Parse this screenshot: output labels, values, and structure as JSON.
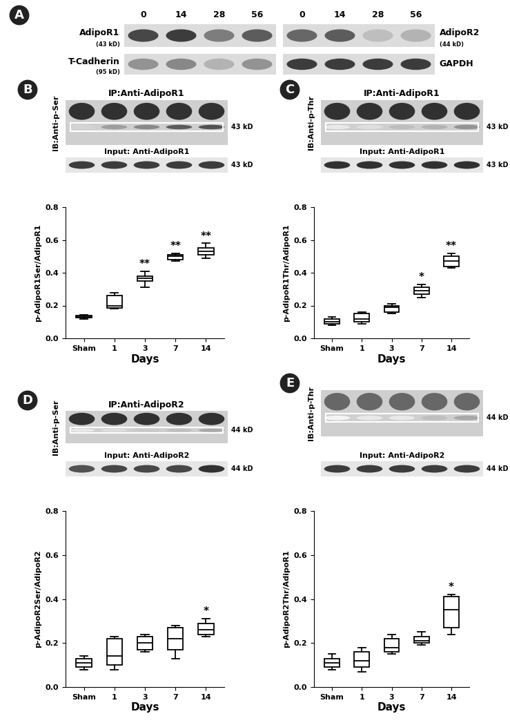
{
  "panel_a": {
    "panel_label": "A",
    "lanes": [
      "0",
      "14",
      "28",
      "56"
    ],
    "blots": [
      {
        "name": "AdipoR1",
        "size": "(43 kD)",
        "band_intensity": [
          0.85,
          0.9,
          0.6,
          0.75
        ]
      },
      {
        "name": "T-Cadherin",
        "size": "(95 kD)",
        "band_intensity": [
          0.5,
          0.55,
          0.35,
          0.5
        ]
      },
      {
        "name": "AdipoR2",
        "size": "(44 kD)",
        "band_intensity": [
          0.7,
          0.75,
          0.3,
          0.35
        ]
      },
      {
        "name": "GAPDH",
        "size": null,
        "band_intensity": [
          0.9,
          0.9,
          0.9,
          0.9
        ]
      }
    ]
  },
  "chart_data": [
    {
      "type": "box",
      "panel_label": "B",
      "ip_title": "IP:Anti-AdipoR1",
      "ib_label": "IB:Anti-p-Ser",
      "size_label": "43 kD",
      "input_title": "Input: Anti-AdipoR1",
      "heavy_band_intensity": [
        0.95,
        0.95,
        0.95,
        0.95,
        0.95
      ],
      "target_band_intensity": [
        0.2,
        0.45,
        0.55,
        0.75,
        0.8
      ],
      "input_band_intensity": [
        0.9,
        0.9,
        0.9,
        0.9,
        0.9
      ],
      "categories": [
        "Sham",
        "1",
        "3",
        "7",
        "14"
      ],
      "stats": [
        {
          "min": 0.12,
          "q1": 0.125,
          "median": 0.13,
          "q3": 0.14,
          "max": 0.145
        },
        {
          "min": 0.18,
          "q1": 0.185,
          "median": 0.2,
          "q3": 0.26,
          "max": 0.28
        },
        {
          "min": 0.31,
          "q1": 0.35,
          "median": 0.365,
          "q3": 0.38,
          "max": 0.41
        },
        {
          "min": 0.47,
          "q1": 0.48,
          "median": 0.5,
          "q3": 0.51,
          "max": 0.52
        },
        {
          "min": 0.49,
          "q1": 0.51,
          "median": 0.53,
          "q3": 0.55,
          "max": 0.58
        }
      ],
      "significance": [
        null,
        null,
        "**",
        "**",
        "**"
      ],
      "x_label": "Days",
      "y_label": "p-AdipoR1Ser/AdipoR1",
      "color": "#000000",
      "ylim": [
        0,
        0.8
      ],
      "yticks": [
        {
          "value": 0,
          "label": "0.0"
        },
        {
          "value": 0.2,
          "label": "0.2"
        },
        {
          "value": 0.4,
          "label": "0.4"
        },
        {
          "value": 0.6,
          "label": "0.6"
        },
        {
          "value": 0.8,
          "label": "0.8"
        }
      ],
      "grid": false
    },
    {
      "type": "box",
      "panel_label": "C",
      "ip_title": "IP:Anti-AdipoR1",
      "ib_label": "IB:Anti-p-Thr",
      "size_label": "43 kD",
      "input_title": "Input: Anti-AdipoR1",
      "heavy_band_intensity": [
        0.95,
        0.95,
        0.95,
        0.95,
        0.95
      ],
      "target_band_intensity": [
        0.1,
        0.15,
        0.3,
        0.35,
        0.5
      ],
      "input_band_intensity": [
        0.95,
        0.95,
        0.95,
        0.95,
        0.95
      ],
      "categories": [
        "Sham",
        "1",
        "3",
        "7",
        "14"
      ],
      "stats": [
        {
          "min": 0.08,
          "q1": 0.09,
          "median": 0.1,
          "q3": 0.12,
          "max": 0.13
        },
        {
          "min": 0.09,
          "q1": 0.1,
          "median": 0.12,
          "q3": 0.15,
          "max": 0.16
        },
        {
          "min": 0.15,
          "q1": 0.16,
          "median": 0.19,
          "q3": 0.2,
          "max": 0.21
        },
        {
          "min": 0.25,
          "q1": 0.27,
          "median": 0.29,
          "q3": 0.31,
          "max": 0.33
        },
        {
          "min": 0.43,
          "q1": 0.44,
          "median": 0.47,
          "q3": 0.5,
          "max": 0.52
        }
      ],
      "significance": [
        null,
        null,
        null,
        "*",
        "**"
      ],
      "x_label": "Days",
      "y_label": "p-AdipoR1Thr/AdipoR1",
      "color": "#000000",
      "ylim": [
        0,
        0.8
      ],
      "yticks": [
        {
          "value": 0,
          "label": "0.0"
        },
        {
          "value": 0.2,
          "label": "0.2"
        },
        {
          "value": 0.4,
          "label": "0.4"
        },
        {
          "value": 0.6,
          "label": "0.6"
        },
        {
          "value": 0.8,
          "label": "0.8"
        }
      ],
      "grid": false
    },
    {
      "type": "box",
      "panel_label": "D",
      "ip_title": "IP:Anti-AdipoR2",
      "ib_label": "IB:Anti-p-Ser",
      "size_label": "44 kD",
      "input_title": "Input: Anti-AdipoR2",
      "heavy_band_intensity": [
        0.95,
        0.95,
        0.95,
        0.95,
        0.95
      ],
      "target_band_intensity": [
        0.1,
        0.15,
        0.25,
        0.3,
        0.4
      ],
      "input_band_intensity": [
        0.8,
        0.85,
        0.85,
        0.85,
        0.95
      ],
      "categories": [
        "Sham",
        "1",
        "3",
        "7",
        "14"
      ],
      "stats": [
        {
          "min": 0.08,
          "q1": 0.09,
          "median": 0.11,
          "q3": 0.13,
          "max": 0.14
        },
        {
          "min": 0.08,
          "q1": 0.1,
          "median": 0.14,
          "q3": 0.22,
          "max": 0.23
        },
        {
          "min": 0.16,
          "q1": 0.17,
          "median": 0.2,
          "q3": 0.23,
          "max": 0.24
        },
        {
          "min": 0.13,
          "q1": 0.17,
          "median": 0.22,
          "q3": 0.27,
          "max": 0.28
        },
        {
          "min": 0.23,
          "q1": 0.24,
          "median": 0.26,
          "q3": 0.29,
          "max": 0.31
        }
      ],
      "significance": [
        null,
        null,
        null,
        null,
        "*"
      ],
      "x_label": "Days",
      "y_label": "p-AdipoR2Ser/AdipoR2",
      "color": "#000000",
      "ylim": [
        0,
        0.8
      ],
      "yticks": [
        {
          "value": 0,
          "label": "0.0"
        },
        {
          "value": 0.2,
          "label": "0.2"
        },
        {
          "value": 0.4,
          "label": "0.4"
        },
        {
          "value": 0.6,
          "label": "0.6"
        },
        {
          "value": 0.8,
          "label": "0.8"
        }
      ],
      "grid": false
    },
    {
      "type": "box",
      "panel_label": "E",
      "ip_title": null,
      "ib_label": "IB:Anti-p-Thr",
      "size_label": "44 kD",
      "input_title": "Input: Anti-AdipoR2",
      "heavy_band_intensity": [
        0.7,
        0.7,
        0.7,
        0.7,
        0.7
      ],
      "target_band_intensity": [
        0.05,
        0.1,
        0.1,
        0.3,
        0.4
      ],
      "input_band_intensity": [
        0.9,
        0.9,
        0.9,
        0.9,
        0.9
      ],
      "categories": [
        "Sham",
        "1",
        "3",
        "7",
        "14"
      ],
      "stats": [
        {
          "min": 0.08,
          "q1": 0.09,
          "median": 0.11,
          "q3": 0.13,
          "max": 0.15
        },
        {
          "min": 0.07,
          "q1": 0.09,
          "median": 0.12,
          "q3": 0.16,
          "max": 0.18
        },
        {
          "min": 0.15,
          "q1": 0.16,
          "median": 0.18,
          "q3": 0.22,
          "max": 0.24
        },
        {
          "min": 0.19,
          "q1": 0.2,
          "median": 0.21,
          "q3": 0.23,
          "max": 0.25
        },
        {
          "min": 0.24,
          "q1": 0.27,
          "median": 0.35,
          "q3": 0.41,
          "max": 0.42
        }
      ],
      "significance": [
        null,
        null,
        null,
        null,
        "*"
      ],
      "x_label": "Days",
      "y_label": "p-AdipoR2Thr/AdipoR1",
      "color": "#000000",
      "ylim": [
        0,
        0.8
      ],
      "yticks": [
        {
          "value": 0,
          "label": "0.0"
        },
        {
          "value": 0.2,
          "label": "0.2"
        },
        {
          "value": 0.4,
          "label": "0.4"
        },
        {
          "value": 0.6,
          "label": "0.6"
        },
        {
          "value": 0.8,
          "label": "0.8"
        }
      ],
      "grid": false
    }
  ]
}
